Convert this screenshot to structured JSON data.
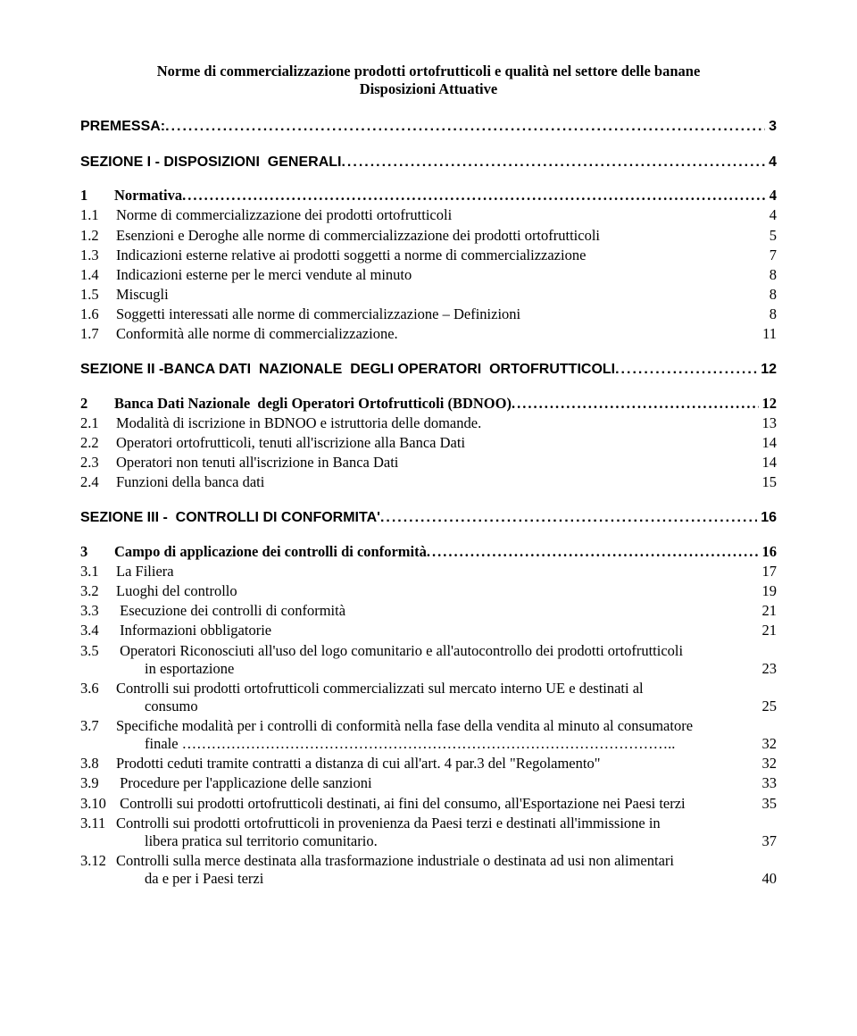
{
  "title": {
    "line1": "Norme di commercializzazione prodotti ortofrutticoli e qualità nel settore delle banane",
    "line2": "Disposizioni Attuative"
  },
  "premessa": {
    "label": "PREMESSA:",
    "page": "3"
  },
  "sec1": {
    "heading": "SEZIONE I - DISPOSIZIONI  GENERALI",
    "page": "4",
    "item": {
      "num": "1",
      "label": "Normativa",
      "page": "4"
    },
    "subs": [
      {
        "num": "1.1",
        "text": "Norme di commercializzazione dei prodotti ortofrutticoli",
        "page": "4"
      },
      {
        "num": "1.2",
        "text": "Esenzioni e Deroghe alle norme di commercializzazione dei prodotti ortofrutticoli",
        "page": "5"
      },
      {
        "num": "1.3",
        "text": "Indicazioni esterne relative ai prodotti soggetti a norme di commercializzazione",
        "page": "7"
      },
      {
        "num": "1.4",
        "text": "Indicazioni esterne per le merci vendute al minuto",
        "page": "8"
      },
      {
        "num": "1.5",
        "text": "Miscugli",
        "page": "8"
      },
      {
        "num": "1.6",
        "text": "Soggetti  interessati alle norme di commercializzazione – Definizioni",
        "page": "8"
      },
      {
        "num": "1.7",
        "text": "Conformità alle norme di commercializzazione.",
        "page": "11"
      }
    ]
  },
  "sec2": {
    "heading": "SEZIONE II -BANCA DATI  NAZIONALE  DEGLI OPERATORI  ORTOFRUTTICOLI",
    "page": "12",
    "item": {
      "num": "2",
      "label": "Banca Dati Nazionale  degli Operatori Ortofrutticoli (BDNOO)",
      "page": "12"
    },
    "subs": [
      {
        "num": "2.1",
        "text": "Modalità di iscrizione in BDNOO e istruttoria delle domande.",
        "page": "13"
      },
      {
        "num": "2.2",
        "text": "Operatori ortofrutticoli, tenuti all'iscrizione alla Banca Dati",
        "page": "14"
      },
      {
        "num": "2.3",
        "text": "Operatori non tenuti all'iscrizione in Banca Dati",
        "page": "14"
      },
      {
        "num": "2.4",
        "text": "Funzioni della banca dati",
        "page": "15"
      }
    ]
  },
  "sec3": {
    "heading": "SEZIONE III -  CONTROLLI DI CONFORMITA'",
    "page": "16",
    "item": {
      "num": "3",
      "label": "Campo di applicazione dei controlli di conformità",
      "page": "16"
    },
    "subs": [
      {
        "num": "3.1",
        "text": "La Filiera",
        "page": "17"
      },
      {
        "num": "3.2",
        "text": "Luoghi del controllo",
        "page": "19"
      },
      {
        "num": "3.3",
        "text": " Esecuzione dei controlli di conformità",
        "page": "21"
      },
      {
        "num": "3.4",
        "text": " Informazioni  obbligatorie",
        "page": "21"
      },
      {
        "num": "3.5",
        "text": " Operatori Riconosciuti all'uso del logo comunitario e all'autocontrollo dei prodotti  ortofrutticoli",
        "cont": "in esportazione",
        "page": "23"
      },
      {
        "num": "3.6",
        "text": "Controlli  sui  prodotti  ortofrutticoli  commercializzati  sul  mercato    interno  UE  e  destinati  al",
        "cont": "consumo",
        "page": "25"
      },
      {
        "num": "3.7",
        "text": "Specifiche modalità per i controlli di conformità nella fase della vendita al minuto al consumatore",
        "cont": "finale ………………………………………………………………………………………..",
        "page": "32",
        "nodots": true
      },
      {
        "num": "3.8",
        "text": "Prodotti ceduti tramite contratti a distanza di cui all'art. 4 par.3 del \"Regolamento\"",
        "page": "32"
      },
      {
        "num": "3.9",
        "text": " Procedure per l'applicazione  delle sanzioni",
        "page": "33"
      },
      {
        "num": "3.10",
        "text": " Controlli sui prodotti ortofrutticoli destinati, ai fini del consumo, all'Esportazione nei  Paesi terzi",
        "page": "35",
        "inline": true
      },
      {
        "num": "3.11",
        "text": "Controlli sui prodotti ortofrutticoli in provenienza da Paesi terzi e  destinati  all'immissione in",
        "cont": "libera pratica sul territorio comunitario.",
        "page": "37"
      },
      {
        "num": "3.12",
        "text": "Controlli  sulla  merce  destinata  alla  trasformazione industriale o destinata ad usi non alimentari",
        "cont": "da e per  i Paesi terzi",
        "page": "40"
      }
    ]
  }
}
